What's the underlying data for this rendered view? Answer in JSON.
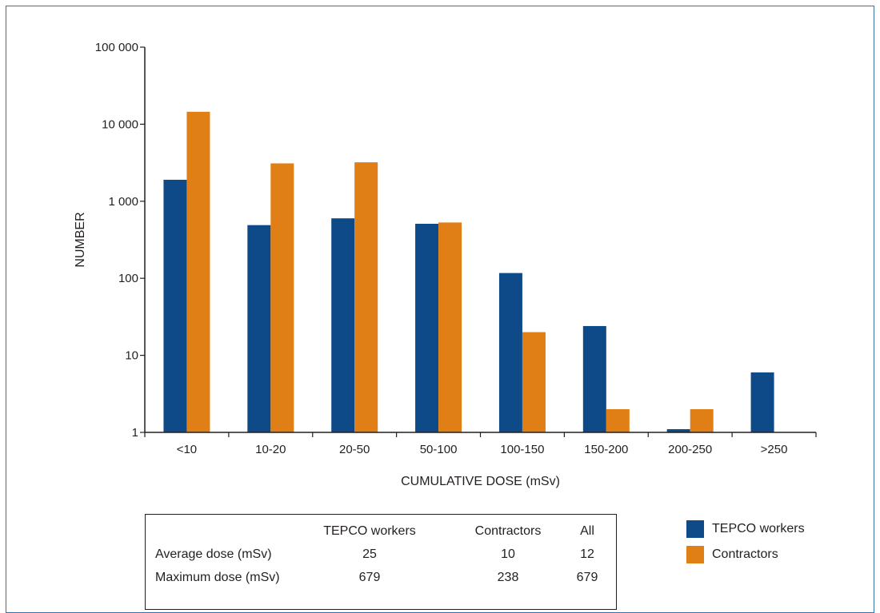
{
  "chart_data": {
    "type": "bar",
    "xlabel": "CUMULATIVE DOSE (mSv)",
    "ylabel": "NUMBER",
    "yscale": "log",
    "ylim": [
      1,
      100000
    ],
    "yticks": [
      1,
      10,
      100,
      1000,
      10000,
      100000
    ],
    "ytick_labels": [
      "1",
      "10",
      "100",
      "1 000",
      "10 000",
      "100 000"
    ],
    "categories": [
      "<10",
      "10-20",
      "20-50",
      "50-100",
      "100-150",
      "150-200",
      "200-250",
      ">250"
    ],
    "series": [
      {
        "name": "TEPCO workers",
        "color": "#0d4a87",
        "values": [
          1900,
          490,
          600,
          510,
          117,
          24,
          1.1,
          6
        ]
      },
      {
        "name": "Contractors",
        "color": "#e07f16",
        "values": [
          14500,
          3100,
          3200,
          530,
          20,
          2,
          2,
          null
        ]
      }
    ],
    "legend_position": "bottom-right",
    "grid": false
  },
  "summary_table": {
    "headers": [
      "",
      "TEPCO workers",
      "Contractors",
      "All"
    ],
    "rows": [
      {
        "label": "Average dose (mSv)",
        "tepco": "25",
        "contractors": "10",
        "all": "12"
      },
      {
        "label": "Maximum dose (mSv)",
        "tepco": "679",
        "contractors": "238",
        "all": "679"
      }
    ]
  },
  "legend": [
    {
      "label": "TEPCO workers",
      "color": "#0d4a87"
    },
    {
      "label": "Contractors",
      "color": "#e07f16"
    }
  ]
}
